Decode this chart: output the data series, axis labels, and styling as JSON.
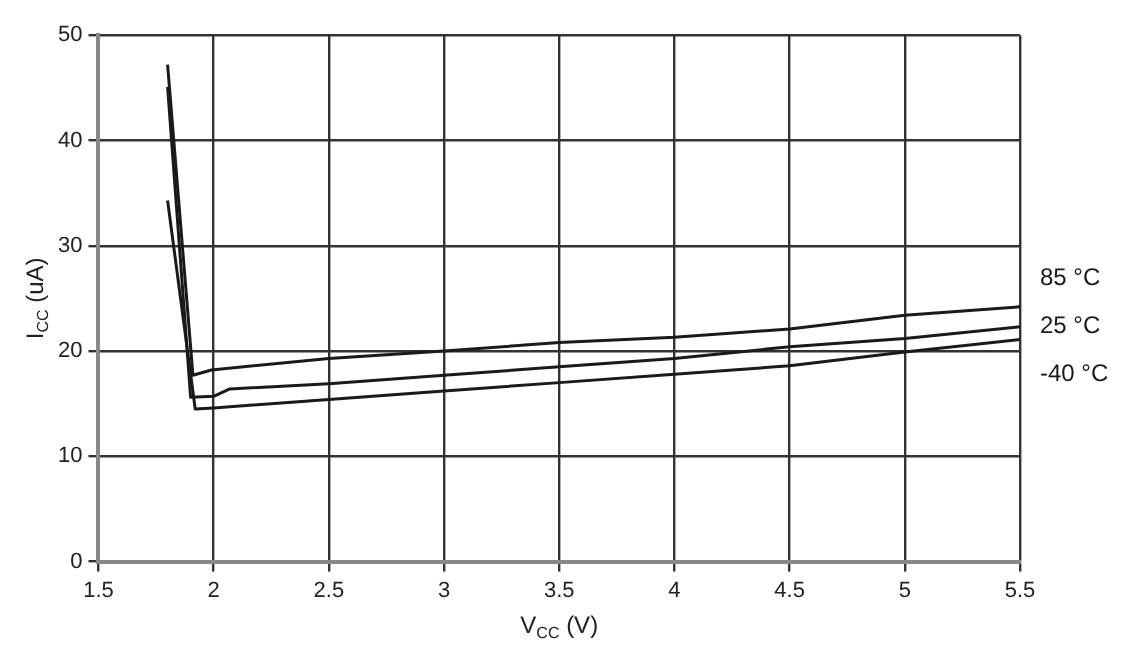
{
  "chart_data": {
    "type": "line",
    "xlabel": "V$_{CC}$ (V)",
    "ylabel": "I$_{CC}$ (uA)",
    "xlim": [
      1.5,
      5.5
    ],
    "xticks": [
      1.5,
      2,
      2.5,
      3,
      3.5,
      4,
      4.5,
      5,
      5.5
    ],
    "ylim": [
      0,
      50
    ],
    "yticks": [
      0,
      10,
      20,
      30,
      40,
      50
    ],
    "grid": true,
    "marker": "none",
    "line_style": "solid",
    "legend": false,
    "series": [
      {
        "name": "85 °C",
        "color": "#1a1a1a",
        "x": [
          1.8,
          1.91,
          1.99,
          2.5,
          3.0,
          3.5,
          4.0,
          4.5,
          5.0,
          5.5
        ],
        "values": [
          47.2,
          17.7,
          18.2,
          19.3,
          20.0,
          20.8,
          21.3,
          22.1,
          23.4,
          24.2
        ]
      },
      {
        "name": "25 °C",
        "color": "#1a1a1a",
        "x": [
          1.8,
          1.9,
          2.0,
          2.07,
          2.5,
          3.0,
          3.5,
          4.0,
          4.5,
          5.0,
          5.5
        ],
        "values": [
          45.1,
          15.6,
          15.7,
          16.4,
          16.9,
          17.7,
          18.5,
          19.3,
          20.4,
          21.2,
          22.3
        ]
      },
      {
        "name": "-40 °C",
        "color": "#1a1a1a",
        "x": [
          1.8,
          1.92,
          2.0,
          2.5,
          3.0,
          3.5,
          4.0,
          4.5,
          5.0,
          5.5
        ],
        "values": [
          34.3,
          14.5,
          14.6,
          15.4,
          16.2,
          17.0,
          17.8,
          18.6,
          19.9,
          21.1
        ]
      }
    ]
  }
}
